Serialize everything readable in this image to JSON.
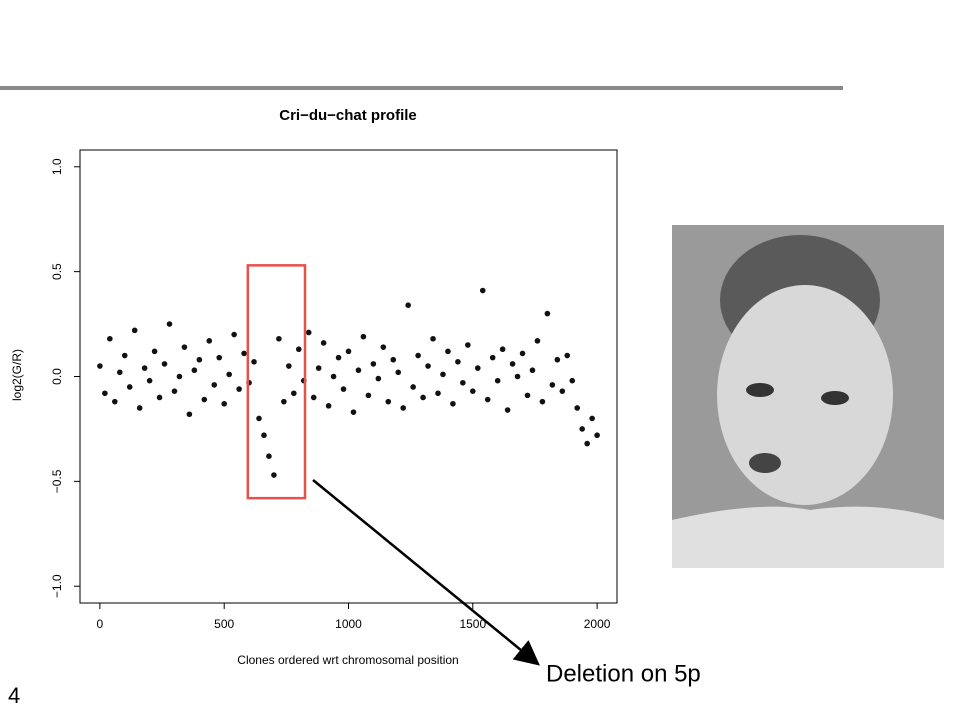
{
  "chart_data": {
    "type": "scatter",
    "title": "Cri−du−chat profile",
    "xlabel": "Clones ordered wrt chromosomal position",
    "ylabel": "log2(G/R)",
    "annotation": "Deletion on 5p",
    "color": "#111111",
    "highlight_box": {
      "x": [
        595,
        825
      ],
      "y": [
        -0.58,
        0.53
      ],
      "color": "#e8504a"
    },
    "xlim": [
      -80,
      2080
    ],
    "ylim": [
      -1.08,
      1.08
    ],
    "xticks": [
      0,
      500,
      1000,
      1500,
      2000
    ],
    "yticks": [
      {
        "value": -1,
        "label": "−1.0"
      },
      {
        "value": -0.5,
        "label": "−0.5"
      },
      {
        "value": 0,
        "label": "0.0"
      },
      {
        "value": 0.5,
        "label": "0.5"
      },
      {
        "value": 1,
        "label": "1.0"
      }
    ],
    "x": [
      0,
      20,
      40,
      60,
      80,
      100,
      120,
      140,
      160,
      180,
      200,
      220,
      240,
      260,
      280,
      300,
      320,
      340,
      360,
      380,
      400,
      420,
      440,
      460,
      480,
      500,
      520,
      540,
      560,
      580,
      600,
      620,
      640,
      660,
      680,
      700,
      720,
      740,
      760,
      780,
      800,
      820,
      840,
      860,
      880,
      900,
      920,
      940,
      960,
      980,
      1000,
      1020,
      1040,
      1060,
      1080,
      1100,
      1120,
      1140,
      1160,
      1180,
      1200,
      1220,
      1240,
      1260,
      1280,
      1300,
      1320,
      1340,
      1360,
      1380,
      1400,
      1420,
      1440,
      1460,
      1480,
      1500,
      1520,
      1540,
      1560,
      1580,
      1600,
      1620,
      1640,
      1660,
      1680,
      1700,
      1720,
      1740,
      1760,
      1780,
      1800,
      1820,
      1840,
      1860,
      1880,
      1900,
      1920,
      1940,
      1960,
      1980,
      2000
    ],
    "values": [
      0.05,
      -0.08,
      0.18,
      -0.12,
      0.02,
      0.1,
      -0.05,
      0.22,
      -0.15,
      0.04,
      -0.02,
      0.12,
      -0.1,
      0.06,
      0.25,
      -0.07,
      0.0,
      0.14,
      -0.18,
      0.03,
      0.08,
      -0.11,
      0.17,
      -0.04,
      0.09,
      -0.13,
      0.01,
      0.2,
      -0.06,
      0.11,
      -0.03,
      0.07,
      -0.2,
      -0.28,
      -0.38,
      -0.47,
      0.18,
      -0.12,
      0.05,
      -0.08,
      0.13,
      -0.02,
      0.21,
      -0.1,
      0.04,
      0.16,
      -0.14,
      0.0,
      0.09,
      -0.06,
      0.12,
      -0.17,
      0.03,
      0.19,
      -0.09,
      0.06,
      -0.01,
      0.14,
      -0.12,
      0.08,
      0.02,
      -0.15,
      0.34,
      -0.05,
      0.1,
      -0.1,
      0.05,
      0.18,
      -0.08,
      0.01,
      0.12,
      -0.13,
      0.07,
      -0.03,
      0.15,
      -0.07,
      0.04,
      0.41,
      -0.11,
      0.09,
      -0.02,
      0.13,
      -0.16,
      0.06,
      0.0,
      0.11,
      -0.09,
      0.03,
      0.17,
      -0.12,
      0.3,
      -0.04,
      0.08,
      -0.07,
      0.1,
      -0.02,
      -0.15,
      -0.25,
      -0.32,
      -0.2,
      -0.28
    ]
  },
  "page_number": "4"
}
